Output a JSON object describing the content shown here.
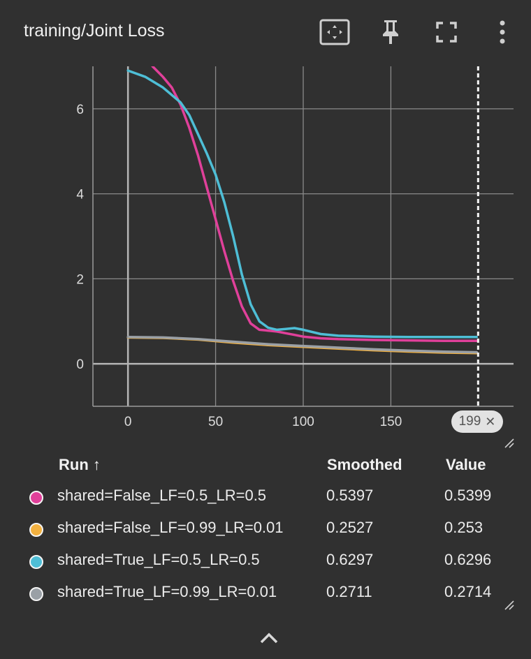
{
  "title": "training/Joint Loss",
  "toolbar": {
    "icons": [
      "fit-domain-icon",
      "pin-icon",
      "fullscreen-icon",
      "more-vert-icon"
    ]
  },
  "colors": {
    "background": "#303030",
    "grid": "#8a8a8a",
    "series": [
      "#e0409a",
      "#f2b140",
      "#4ebed6",
      "#9aa0a6"
    ]
  },
  "chart_data": {
    "type": "line",
    "title": "training/Joint Loss",
    "xlabel": "",
    "ylabel": "",
    "xlim": [
      -20,
      220
    ],
    "ylim": [
      -1,
      7
    ],
    "xticks": [
      0,
      50,
      100,
      150
    ],
    "yticks": [
      0,
      2,
      4,
      6
    ],
    "grid": true,
    "cursor_step": 199,
    "series": [
      {
        "name": "shared=False_LF=0.5_LR=0.5",
        "color": "#e0409a",
        "x": [
          14,
          20,
          25,
          30,
          35,
          40,
          45,
          50,
          55,
          60,
          65,
          70,
          75,
          80,
          85,
          90,
          95,
          100,
          110,
          120,
          140,
          160,
          180,
          199
        ],
        "y": [
          7.0,
          6.75,
          6.5,
          6.1,
          5.55,
          4.9,
          4.15,
          3.4,
          2.65,
          1.95,
          1.35,
          0.95,
          0.8,
          0.78,
          0.76,
          0.72,
          0.68,
          0.64,
          0.6,
          0.58,
          0.56,
          0.55,
          0.54,
          0.5397
        ]
      },
      {
        "name": "shared=False_LF=0.99_LR=0.01",
        "color": "#f2b140",
        "x": [
          0,
          20,
          40,
          60,
          80,
          100,
          120,
          140,
          160,
          180,
          199
        ],
        "y": [
          0.62,
          0.61,
          0.57,
          0.5,
          0.44,
          0.4,
          0.36,
          0.32,
          0.29,
          0.265,
          0.2527
        ]
      },
      {
        "name": "shared=True_LF=0.5_LR=0.5",
        "color": "#4ebed6",
        "x": [
          0,
          10,
          20,
          30,
          35,
          40,
          45,
          50,
          55,
          60,
          65,
          70,
          75,
          80,
          85,
          90,
          95,
          100,
          110,
          120,
          140,
          160,
          180,
          199
        ],
        "y": [
          6.9,
          6.75,
          6.5,
          6.15,
          5.85,
          5.4,
          4.95,
          4.45,
          3.8,
          3.0,
          2.1,
          1.4,
          1.0,
          0.85,
          0.8,
          0.82,
          0.84,
          0.8,
          0.7,
          0.66,
          0.64,
          0.63,
          0.63,
          0.6297
        ]
      },
      {
        "name": "shared=True_LF=0.99_LR=0.01",
        "color": "#9aa0a6",
        "x": [
          0,
          20,
          40,
          60,
          80,
          100,
          120,
          140,
          160,
          180,
          199
        ],
        "y": [
          0.63,
          0.62,
          0.58,
          0.52,
          0.46,
          0.42,
          0.38,
          0.34,
          0.31,
          0.285,
          0.2711
        ]
      }
    ]
  },
  "step_badge": {
    "label": "199",
    "close": "✕"
  },
  "legend": {
    "headers": {
      "run": "Run ↑",
      "smoothed": "Smoothed",
      "value": "Value"
    },
    "rows": [
      {
        "run": "shared=False_LF=0.5_LR=0.5",
        "smoothed": "0.5397",
        "value": "0.5399",
        "color": "#e0409a"
      },
      {
        "run": "shared=False_LF=0.99_LR=0.01",
        "smoothed": "0.2527",
        "value": "0.253",
        "color": "#f2b140"
      },
      {
        "run": "shared=True_LF=0.5_LR=0.5",
        "smoothed": "0.6297",
        "value": "0.6296",
        "color": "#4ebed6"
      },
      {
        "run": "shared=True_LF=0.99_LR=0.01",
        "smoothed": "0.2711",
        "value": "0.2714",
        "color": "#9aa0a6"
      }
    ]
  }
}
